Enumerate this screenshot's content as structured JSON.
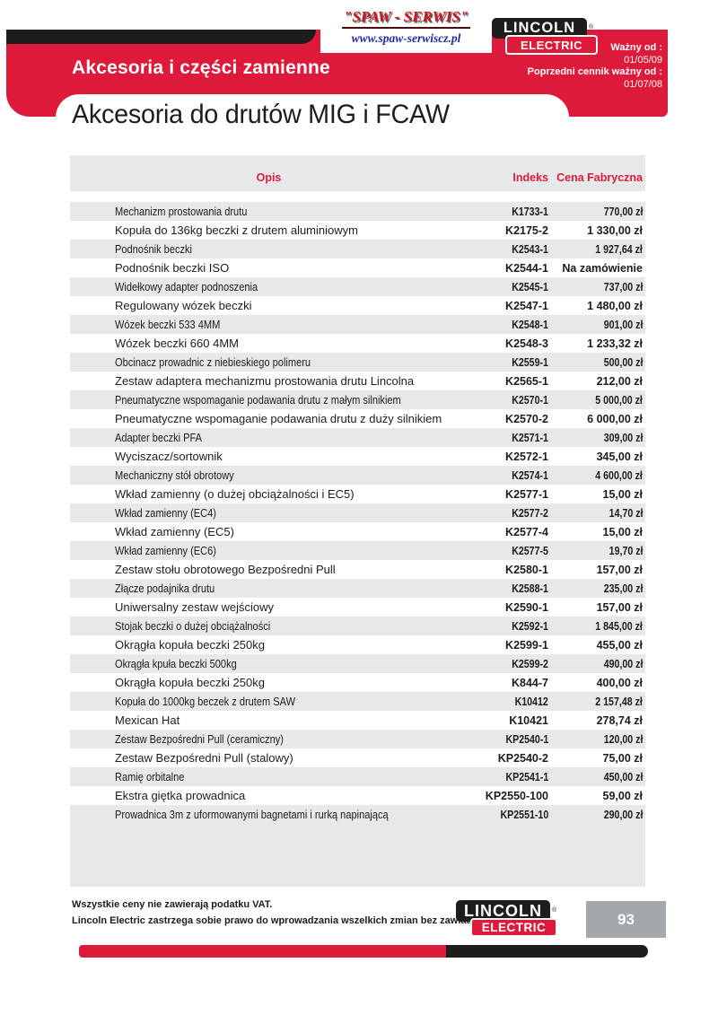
{
  "colors": {
    "red": "#de1a3b",
    "ink": "#1d1d1b",
    "rowgray": "#e7e8e9",
    "boxgray": "#a5a8aa",
    "navy": "#2228a8",
    "maroon": "#4a0d0d",
    "spawred": "#cf1620"
  },
  "header": {
    "spaw_logo": {
      "title": "\"SPAW - SERWIS\"",
      "url": "www.spaw-serwiscz.pl"
    },
    "lincoln_logo": {
      "line1": "LINCOLN",
      "line2": "ELECTRIC",
      "reg_mark": "®"
    },
    "band_title": "Akcesoria i części zamienne",
    "validity": {
      "label1": "Ważny od :",
      "date1": "01/05/09",
      "label2": "Poprzedni cennik ważny od :",
      "date2": "01/07/08"
    }
  },
  "section_title": "Akcesoria do drutów MIG i FCAW",
  "table": {
    "columns": {
      "opis": "Opis",
      "indeks": "Indeks",
      "cena": "Cena Fabryczna"
    },
    "rows": [
      {
        "opis": "Mechanizm prostowania drutu",
        "indeks": "K1733-1",
        "cena": "770,00 zł"
      },
      {
        "opis": "Kopuła do 136kg beczki z drutem aluminiowym",
        "indeks": "K2175-2",
        "cena": "1 330,00 zł"
      },
      {
        "opis": "Podnośnik beczki",
        "indeks": "K2543-1",
        "cena": "1 927,64 zł"
      },
      {
        "opis": "Podnośnik beczki ISO",
        "indeks": "K2544-1",
        "cena": "Na zamówienie"
      },
      {
        "opis": "Widełkowy adapter podnoszenia",
        "indeks": "K2545-1",
        "cena": "737,00 zł"
      },
      {
        "opis": "Regulowany wózek beczki",
        "indeks": "K2547-1",
        "cena": "1 480,00 zł"
      },
      {
        "opis": "Wózek beczki 533 4MM",
        "indeks": "K2548-1",
        "cena": "901,00 zł"
      },
      {
        "opis": "Wózek beczki 660 4MM",
        "indeks": "K2548-3",
        "cena": "1 233,32 zł"
      },
      {
        "opis": "Obcinacz prowadnic z niebieskiego polimeru",
        "indeks": "K2559-1",
        "cena": "500,00 zł"
      },
      {
        "opis": "Zestaw adaptera mechanizmu prostowania drutu Lincolna",
        "indeks": "K2565-1",
        "cena": "212,00 zł"
      },
      {
        "opis": "Pneumatyczne wspomaganie podawania drutu z małym silnikiem",
        "indeks": "K2570-1",
        "cena": "5 000,00 zł"
      },
      {
        "opis": "Pneumatyczne wspomaganie podawania drutu z duży silnikiem",
        "indeks": "K2570-2",
        "cena": "6 000,00 zł"
      },
      {
        "opis": "Adapter beczki PFA",
        "indeks": "K2571-1",
        "cena": "309,00 zł"
      },
      {
        "opis": "Wyciszacz/sortownik",
        "indeks": "K2572-1",
        "cena": "345,00 zł"
      },
      {
        "opis": "Mechaniczny stół obrotowy",
        "indeks": "K2574-1",
        "cena": "4 600,00 zł"
      },
      {
        "opis": "Wkład zamienny (o dużej obciążalności i EC5)",
        "indeks": "K2577-1",
        "cena": "15,00 zł"
      },
      {
        "opis": "Wkład zamienny (EC4)",
        "indeks": "K2577-2",
        "cena": "14,70 zł"
      },
      {
        "opis": "Wkład zamienny (EC5)",
        "indeks": "K2577-4",
        "cena": "15,00 zł"
      },
      {
        "opis": "Wkład zamienny (EC6)",
        "indeks": "K2577-5",
        "cena": "19,70 zł"
      },
      {
        "opis": "Zestaw stołu obrotowego Bezpośredni Pull",
        "indeks": "K2580-1",
        "cena": "157,00 zł"
      },
      {
        "opis": "Złącze podajnika drutu",
        "indeks": "K2588-1",
        "cena": "235,00 zł"
      },
      {
        "opis": "Uniwersalny zestaw wejściowy",
        "indeks": "K2590-1",
        "cena": "157,00 zł"
      },
      {
        "opis": "Stojak beczki o dużej obciążalności",
        "indeks": "K2592-1",
        "cena": "1 845,00 zł"
      },
      {
        "opis": "Okrągła kopuła beczki 250kg",
        "indeks": "K2599-1",
        "cena": "455,00 zł"
      },
      {
        "opis": "Okrągła kpuła beczki 500kg",
        "indeks": "K2599-2",
        "cena": "490,00 zł"
      },
      {
        "opis": "Okrągła kopuła beczki 250kg",
        "indeks": "K844-7",
        "cena": "400,00 zł"
      },
      {
        "opis": "Kopuła do 1000kg beczek z drutem SAW",
        "indeks": "K10412",
        "cena": "2 157,48 zł"
      },
      {
        "opis": "Mexican Hat",
        "indeks": "K10421",
        "cena": "278,74 zł"
      },
      {
        "opis": "Zestaw Bezpośredni Pull (ceramiczny)",
        "indeks": "KP2540-1",
        "cena": "120,00 zł"
      },
      {
        "opis": "Zestaw Bezpośredni Pull (stalowy)",
        "indeks": "KP2540-2",
        "cena": "75,00 zł"
      },
      {
        "opis": "Ramię orbitalne",
        "indeks": "KP2541-1",
        "cena": "450,00 zł"
      },
      {
        "opis": "Ekstra giętka prowadnica",
        "indeks": "KP2550-100",
        "cena": "59,00 zł"
      },
      {
        "opis": "Prowadnica 3m z uformowanymi bagnetami i rurką napinającą",
        "indeks": "KP2551-10",
        "cena": "290,00 zł"
      }
    ]
  },
  "footer": {
    "note1": "Wszystkie ceny nie zawierają podatku VAT.",
    "note2": "Lincoln Electric zastrzega sobie prawo do wprowadzania wszelkich zmian bez zawiadomienia.",
    "lincoln_logo": {
      "line1": "LINCOLN",
      "line2": "ELECTRIC",
      "reg_mark": "®"
    },
    "page_number": "93"
  }
}
